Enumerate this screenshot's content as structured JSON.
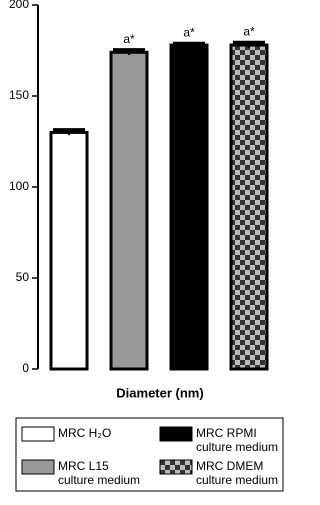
{
  "chart_data": {
    "type": "bar",
    "xlabel": "Diameter (nm)",
    "ylim": [
      0,
      200
    ],
    "yticks": [
      0,
      50,
      100,
      150,
      200
    ],
    "series": [
      {
        "name": [
          "MRC H₂O"
        ],
        "color": "#ffffff",
        "values": [
          130
        ],
        "errors": [
          1.5
        ]
      },
      {
        "name": [
          "MRC L15",
          "culture medium"
        ],
        "color": "#999999",
        "values": [
          174
        ],
        "errors": [
          1.5
        ],
        "annotation": "a*"
      },
      {
        "name": [
          "MRC RPMI",
          "culture medium"
        ],
        "color": "#000000",
        "values": [
          178
        ],
        "errors": [
          1
        ],
        "annotation": "a*"
      },
      {
        "name": [
          "MRC DMEM",
          "culture medium"
        ],
        "color": "checker",
        "values": [
          178
        ],
        "errors": [
          1.5
        ],
        "annotation": "a*"
      }
    ]
  }
}
